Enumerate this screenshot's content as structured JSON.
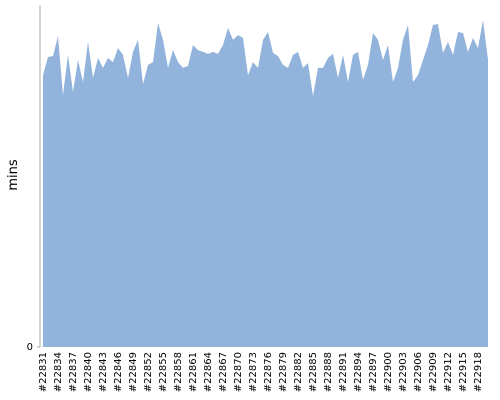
{
  "chart_data": {
    "type": "area",
    "ylabel": "mins",
    "color": "#92b3dc",
    "categories": [
      "#22831",
      null,
      null,
      "#22834",
      null,
      null,
      "#22837",
      null,
      null,
      "#22840",
      null,
      null,
      "#22843",
      null,
      null,
      "#22846",
      null,
      null,
      "#22849",
      null,
      null,
      "#22852",
      null,
      null,
      "#22855",
      null,
      null,
      "#22858",
      null,
      null,
      "#22861",
      null,
      null,
      "#22864",
      null,
      null,
      "#22867",
      null,
      null,
      "#22870",
      null,
      null,
      "#22873",
      null,
      null,
      "#22876",
      null,
      null,
      "#22879",
      null,
      null,
      "#22882",
      null,
      null,
      "#22885",
      null,
      null,
      "#22888",
      null,
      null,
      "#22891",
      null,
      null,
      "#22894",
      null,
      null,
      "#22897",
      null,
      null,
      "#22900",
      null,
      null,
      "#22903",
      null,
      null,
      "#22906",
      null,
      null,
      "#22909",
      null,
      null,
      "#22912",
      null,
      null,
      "#22915",
      null,
      null,
      "#22918",
      null,
      null
    ],
    "values": [
      79.5,
      84.8,
      85.1,
      90.9,
      73.7,
      85.4,
      74.6,
      83.9,
      77.5,
      89.2,
      78.7,
      84.5,
      81.6,
      84.5,
      83.3,
      87.4,
      85.4,
      78.7,
      86.3,
      89.8,
      76.9,
      82.5,
      83.3,
      94.7,
      89.8,
      81.6,
      86.8,
      83.3,
      81.6,
      82.2,
      88.3,
      86.8,
      86.3,
      85.7,
      86.3,
      85.7,
      88.3,
      93.3,
      89.8,
      91.2,
      90.4,
      79.5,
      83.3,
      81.6,
      89.8,
      92.1,
      86.0,
      85.1,
      82.5,
      81.6,
      85.4,
      86.3,
      81.6,
      83.0,
      73.4,
      81.6,
      81.6,
      84.5,
      85.7,
      78.7,
      85.4,
      77.5,
      85.4,
      86.3,
      78.1,
      82.5,
      91.8,
      89.8,
      83.9,
      88.3,
      77.5,
      81.6,
      89.8,
      94.2,
      77.5,
      79.5,
      83.9,
      88.3,
      94.2,
      94.4,
      86.0,
      89.2,
      85.4,
      92.1,
      91.8,
      86.3,
      90.4,
      87.4,
      95.6,
      83.9
    ],
    "ylim": [
      0,
      100
    ],
    "yticks": [
      0
    ]
  }
}
